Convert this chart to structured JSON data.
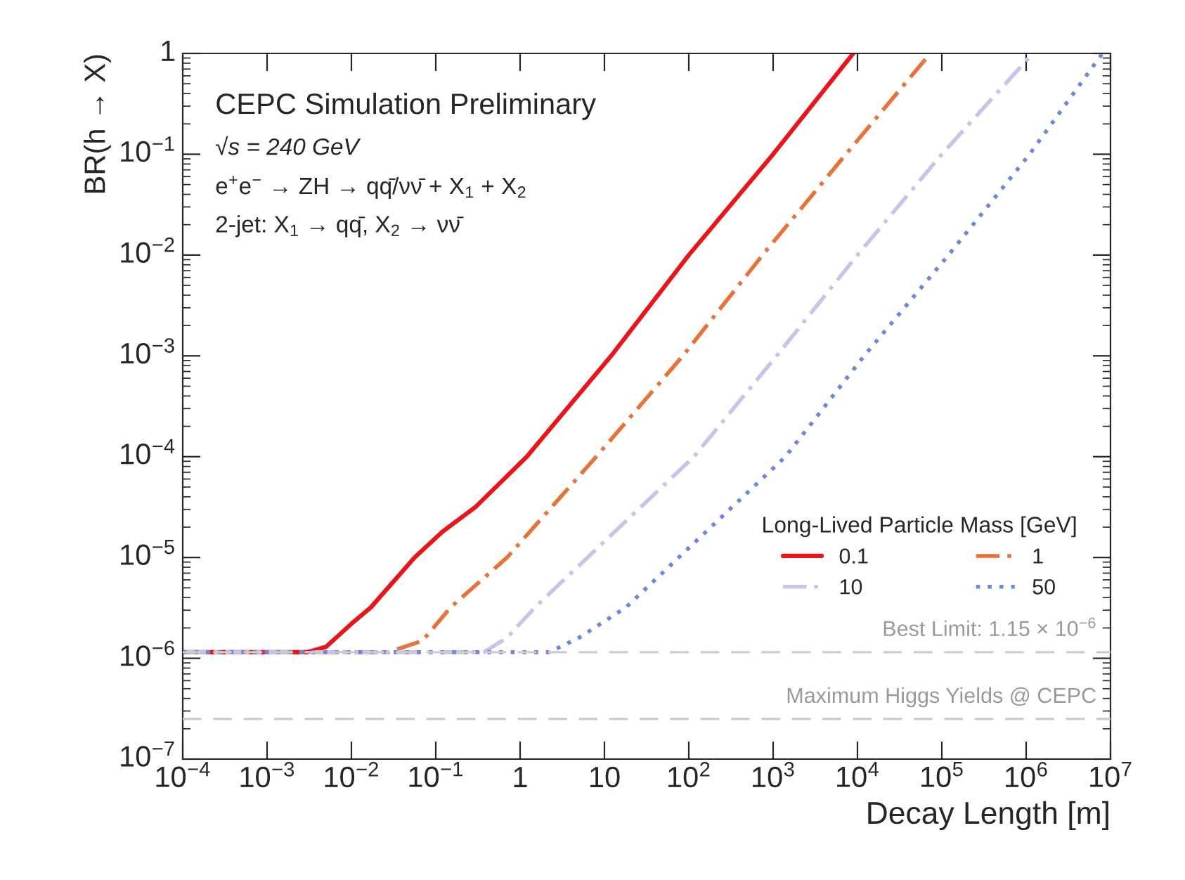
{
  "chart_data": {
    "type": "line",
    "xlabel": "Decay Length [m]",
    "ylabel": "BR(h → X)",
    "log": "xy",
    "legend_title": "Long-Lived Particle Mass [GeV]",
    "legend": "bottom right",
    "grid": false,
    "xlim": [
      0.0001,
      10000000
    ],
    "ylim": [
      1e-07,
      1
    ],
    "xticks": [
      {
        "value": 0.0001,
        "label": "10$^{−4}$"
      },
      {
        "value": 0.001,
        "label": "10$^{−3}$"
      },
      {
        "value": 0.01,
        "label": "10$^{−2}$"
      },
      {
        "value": 0.1,
        "label": "10$^{−1}$"
      },
      {
        "value": 1,
        "label": "1"
      },
      {
        "value": 10,
        "label": "10"
      },
      {
        "value": 100,
        "label": "10$^{2}$"
      },
      {
        "value": 1000,
        "label": "10$^{3}$"
      },
      {
        "value": 10000,
        "label": "10$^{4}$"
      },
      {
        "value": 100000,
        "label": "10$^{5}$"
      },
      {
        "value": 1000000,
        "label": "10$^{6}$"
      },
      {
        "value": 10000000,
        "label": "10$^{7}$"
      }
    ],
    "yticks": [
      {
        "value": 1e-07,
        "label": "10$^{−7}$"
      },
      {
        "value": 1e-06,
        "label": "10$^{−6}$"
      },
      {
        "value": 1e-05,
        "label": "10$^{−5}$"
      },
      {
        "value": 0.0001,
        "label": "10$^{−4}$"
      },
      {
        "value": 0.001,
        "label": "10$^{−3}$"
      },
      {
        "value": 0.01,
        "label": "10$^{−2}$"
      },
      {
        "value": 0.1,
        "label": "10$^{−1}$"
      },
      {
        "value": 1,
        "label": "1"
      }
    ],
    "series": [
      {
        "name": "0.1",
        "color": "#e8161b",
        "line_style": "solid",
        "x": [
          0.0001,
          0.003,
          0.005,
          0.01,
          0.017,
          0.03,
          0.056,
          0.12,
          0.3,
          1.2,
          12,
          100,
          1000,
          8900
        ],
        "values": [
          1.15e-06,
          1.15e-06,
          1.3e-06,
          2.2e-06,
          3.2e-06,
          5.5e-06,
          1e-05,
          1.8e-05,
          3.2e-05,
          0.0001,
          0.001,
          0.01,
          0.1,
          1
        ]
      },
      {
        "name": "1",
        "color": "#e8733a",
        "line_style": "dashdot",
        "x": [
          0.0001,
          0.028,
          0.07,
          0.15,
          0.7,
          8,
          85,
          750,
          7300,
          73000
        ],
        "values": [
          1.15e-06,
          1.15e-06,
          1.5e-06,
          3.2e-06,
          1e-05,
          0.0001,
          0.001,
          0.01,
          0.1,
          1
        ]
      },
      {
        "name": "10",
        "color": "#c8c3e8",
        "line_style": "dashdot",
        "x": [
          0.0001,
          0.37,
          0.7,
          1.5,
          6.3,
          115,
          1100,
          10000,
          100000,
          1200000
        ],
        "values": [
          1.15e-06,
          1.15e-06,
          1.6e-06,
          3.2e-06,
          1e-05,
          0.0001,
          0.001,
          0.01,
          0.1,
          1
        ]
      },
      {
        "name": "50",
        "color": "#6f86e0",
        "line_style": "dotted",
        "x": [
          0.0001,
          2.2,
          5,
          18,
          76,
          1400,
          12000,
          120000,
          1100000,
          8000000
        ],
        "values": [
          1.15e-06,
          1.15e-06,
          1.6e-06,
          3.2e-06,
          1e-05,
          0.0001,
          0.001,
          0.01,
          0.1,
          1
        ]
      }
    ],
    "ref_lines": [
      {
        "axis": "y",
        "value": 1.15e-06,
        "label": "Best Limit: 1.15 × 10$^{−6}$",
        "color": "#cccccc",
        "line_style": "dashed"
      },
      {
        "axis": "y",
        "value": 2.5e-07,
        "label": "Maximum Higgs Yields @ CEPC",
        "color": "#cccccc",
        "line_style": "dashed"
      }
    ],
    "annotations": [
      "CEPC Simulation Preliminary",
      "√s = 240 GeV",
      "e$^{+}$e$^{−}$ → ZH → qq̄/νν̄ + X$_{1}$ + X$_{2}$",
      "2-jet: X$_{1}$ → qq̄, X$_{2}$ → νν̄"
    ]
  }
}
